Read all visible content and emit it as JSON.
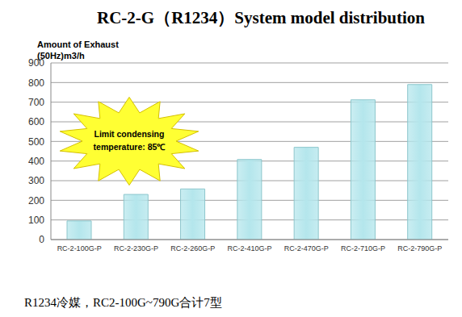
{
  "chart_data": {
    "type": "bar",
    "title": "RC-2-G（R1234）System model distribution",
    "ylabel": "Amount of Exhaust (50Hz)m3/h",
    "annotations": [
      "Limit condensing temperature: 85℃"
    ],
    "footnote": "R1234冷媒，RC2-100G~790G合计7型",
    "categories": [
      "RC-2-100G-P",
      "RC-2-230G-P",
      "RC-2-260G-P",
      "RC-2-410G-P",
      "RC-2-470G-P",
      "RC-2-710G-P",
      "RC-2-790G-P"
    ],
    "values": [
      95,
      230,
      258,
      408,
      470,
      712,
      790
    ],
    "color": "#b4e6ec",
    "ylim": [
      0,
      900
    ],
    "yticks": [
      0,
      100,
      200,
      300,
      400,
      500,
      600,
      700,
      800,
      900
    ],
    "grid": true
  }
}
